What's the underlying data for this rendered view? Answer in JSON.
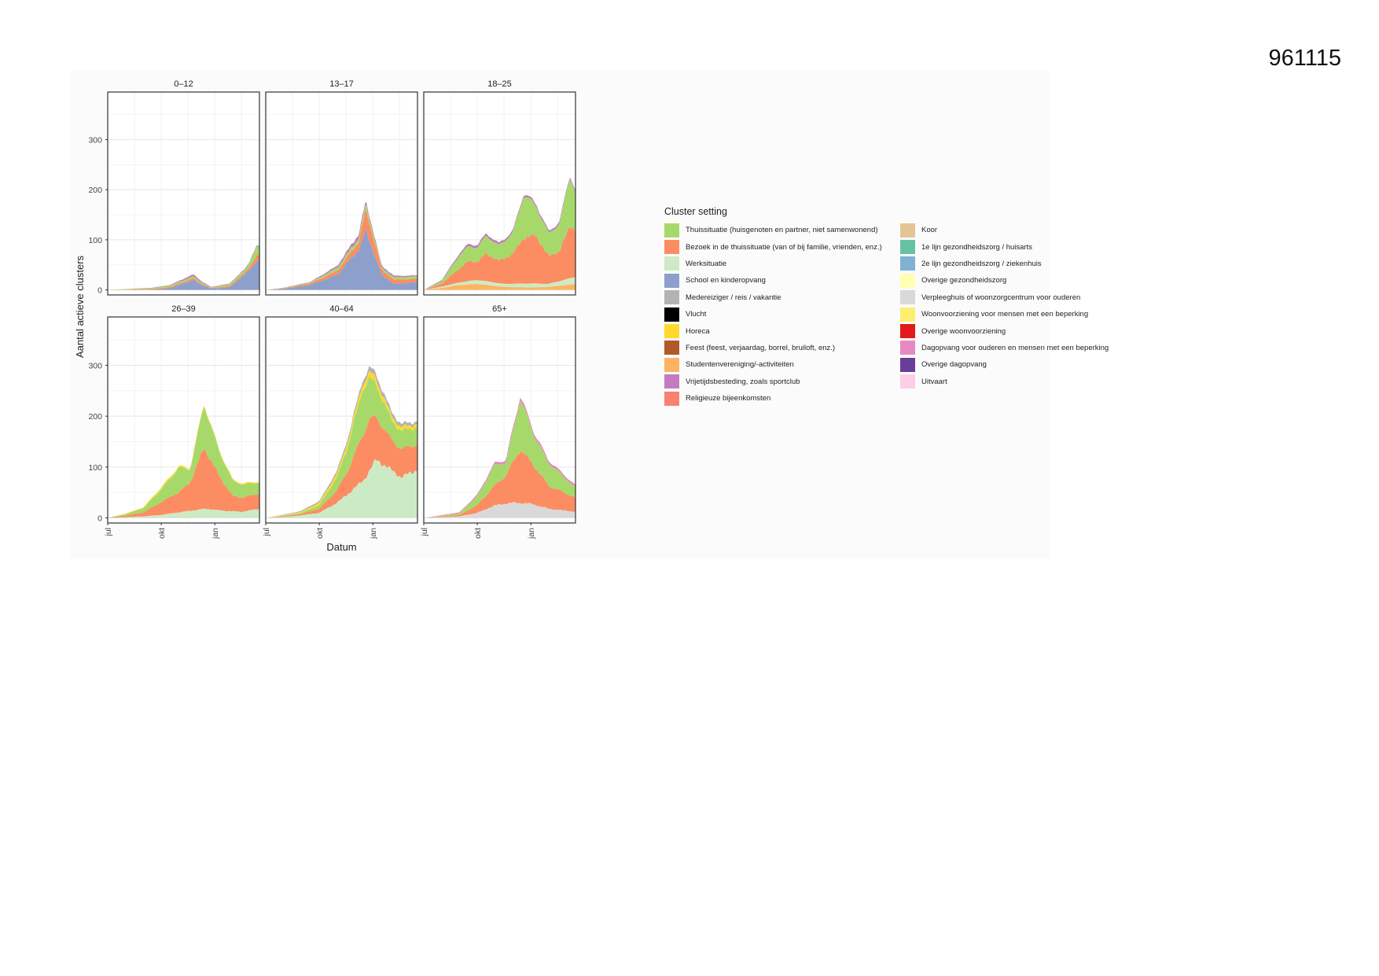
{
  "page": {
    "doc_number": "961115"
  },
  "chart_data": {
    "type": "area",
    "stacked": true,
    "ylabel": "Aantal actieve clusters",
    "xlabel": "Datum",
    "x_ticks": [
      "jul",
      "okt",
      "jan"
    ],
    "y_ticks": [
      0,
      100,
      200,
      300
    ],
    "ylim": [
      -10,
      395
    ],
    "x_months": [
      0,
      8.5
    ],
    "grid": true,
    "legend_title": "Cluster setting",
    "legend_position": "right",
    "settings": [
      {
        "name": "Thuissituatie (huisgenoten en partner, niet samenwonend)",
        "color": "#a6d96a"
      },
      {
        "name": "Bezoek in de thuissituatie (van of bij familie, vrienden, enz.)",
        "color": "#fc8d62"
      },
      {
        "name": "Werksituatie",
        "color": "#ccebc5"
      },
      {
        "name": "School en kinderopvang",
        "color": "#8da0cb"
      },
      {
        "name": "Medereiziger / reis / vakantie",
        "color": "#b3b3b3"
      },
      {
        "name": "Vlucht",
        "color": "#000000"
      },
      {
        "name": "Horeca",
        "color": "#ffd92f"
      },
      {
        "name": "Feest (feest, verjaardag, borrel, bruiloft, enz.)",
        "color": "#b15928"
      },
      {
        "name": "Studentenvereniging/-activiteiten",
        "color": "#fdb462"
      },
      {
        "name": "Vrijetijdsbesteding, zoals sportclub",
        "color": "#c27dbf"
      },
      {
        "name": "Religieuze bijeenkomsten",
        "color": "#fb8072"
      },
      {
        "name": "Koor",
        "color": "#e5c494"
      },
      {
        "name": "1e lijn gezondheidszorg / huisarts",
        "color": "#66c2a5"
      },
      {
        "name": "2e lijn gezondheidszorg / ziekenhuis",
        "color": "#80b1d3"
      },
      {
        "name": "Overige gezondheidszorg",
        "color": "#ffffb3"
      },
      {
        "name": "Verpleeghuis of woonzorgcentrum voor ouderen",
        "color": "#d9d9d9"
      },
      {
        "name": "Woonvoorziening voor mensen met een beperking",
        "color": "#ffed6f"
      },
      {
        "name": "Overige woonvoorziening",
        "color": "#e31a1c"
      },
      {
        "name": "Dagopvang voor ouderen en mensen met een beperking",
        "color": "#e78ac3"
      },
      {
        "name": "Overige dagopvang",
        "color": "#6a3d9a"
      },
      {
        "name": "Uitvaart",
        "color": "#fccde5"
      }
    ],
    "panels": [
      {
        "title": "0–12",
        "series": {
          "School en kinderopvang": [
            [
              0,
              0
            ],
            [
              2.5,
              0
            ],
            [
              3.5,
              4
            ],
            [
              4.8,
              20
            ],
            [
              5.3,
              9
            ],
            [
              5.8,
              3
            ],
            [
              6.8,
              5
            ],
            [
              7.6,
              28
            ],
            [
              8.3,
              55
            ],
            [
              8.5,
              58
            ]
          ],
          "Bezoek in de thuissituatie (van of bij familie, vrienden, enz.)": [
            [
              0,
              0
            ],
            [
              4.8,
              3
            ],
            [
              5.8,
              1
            ],
            [
              7.8,
              4
            ],
            [
              8.3,
              10
            ],
            [
              8.5,
              12
            ]
          ],
          "Thuissituatie (huisgenoten en partner, niet samenwonend)": [
            [
              0,
              0
            ],
            [
              4.8,
              4
            ],
            [
              5.8,
              1
            ],
            [
              7.8,
              6
            ],
            [
              8.3,
              18
            ],
            [
              8.5,
              16
            ]
          ],
          "Vrijetijdsbesteding, zoals sportclub": [
            [
              0,
              0
            ],
            [
              3.5,
              1
            ],
            [
              4.8,
              4
            ],
            [
              5.8,
              1
            ],
            [
              8.5,
              2
            ]
          ]
        }
      },
      {
        "title": "13–17",
        "series": {
          "School en kinderopvang": [
            [
              0,
              0
            ],
            [
              1,
              2
            ],
            [
              2.5,
              10
            ],
            [
              4,
              30
            ],
            [
              5.2,
              80
            ],
            [
              5.6,
              118
            ],
            [
              6,
              80
            ],
            [
              6.5,
              30
            ],
            [
              7.2,
              12
            ],
            [
              8.5,
              16
            ]
          ],
          "Bezoek in de thuissituatie (van of bij familie, vrienden, enz.)": [
            [
              0,
              0
            ],
            [
              2.5,
              3
            ],
            [
              4,
              8
            ],
            [
              5.2,
              15
            ],
            [
              5.6,
              40
            ],
            [
              6,
              30
            ],
            [
              6.5,
              10
            ],
            [
              8.5,
              6
            ]
          ],
          "Thuissituatie (huisgenoten en partner, niet samenwonend)": [
            [
              0,
              0
            ],
            [
              2.5,
              2
            ],
            [
              4,
              6
            ],
            [
              5.2,
              8
            ],
            [
              5.6,
              12
            ],
            [
              6,
              8
            ],
            [
              6.5,
              4
            ],
            [
              8.5,
              5
            ]
          ],
          "Vrijetijdsbesteding, zoals sportclub": [
            [
              0,
              0
            ],
            [
              2.5,
              1
            ],
            [
              4,
              4
            ],
            [
              5.2,
              8
            ],
            [
              5.6,
              6
            ],
            [
              6,
              4
            ],
            [
              8.5,
              2
            ]
          ]
        }
      },
      {
        "title": "18–25",
        "series": {
          "Studentenvereniging/-activiteiten": [
            [
              0,
              0
            ],
            [
              1,
              4
            ],
            [
              2,
              10
            ],
            [
              3,
              12
            ],
            [
              4.5,
              6
            ],
            [
              6,
              5
            ],
            [
              7,
              6
            ],
            [
              8.5,
              12
            ]
          ],
          "Werksituatie": [
            [
              0,
              0
            ],
            [
              2,
              5
            ],
            [
              3,
              8
            ],
            [
              4.5,
              6
            ],
            [
              6,
              8
            ],
            [
              7,
              6
            ],
            [
              8.5,
              14
            ]
          ],
          "Bezoek in de thuissituatie (van of bij familie, vrienden, enz.)": [
            [
              0,
              0
            ],
            [
              1,
              6
            ],
            [
              2,
              28
            ],
            [
              2.5,
              40
            ],
            [
              3,
              36
            ],
            [
              3.5,
              55
            ],
            [
              4.2,
              45
            ],
            [
              5,
              60
            ],
            [
              5.6,
              92
            ],
            [
              6.3,
              95
            ],
            [
              7,
              55
            ],
            [
              7.6,
              60
            ],
            [
              8.2,
              105
            ],
            [
              8.5,
              95
            ]
          ],
          "Thuissituatie (huisgenoten en partner, niet samenwonend)": [
            [
              0,
              0
            ],
            [
              1,
              5
            ],
            [
              2,
              26
            ],
            [
              2.5,
              30
            ],
            [
              3,
              28
            ],
            [
              3.5,
              36
            ],
            [
              4.2,
              30
            ],
            [
              5,
              42
            ],
            [
              5.6,
              85
            ],
            [
              6.3,
              60
            ],
            [
              7,
              45
            ],
            [
              7.6,
              55
            ],
            [
              8.2,
              98
            ],
            [
              8.5,
              75
            ]
          ],
          "Vrijetijdsbesteding, zoals sportclub": [
            [
              0,
              0
            ],
            [
              2,
              4
            ],
            [
              3,
              5
            ],
            [
              5,
              4
            ],
            [
              8.5,
              4
            ]
          ]
        }
      },
      {
        "title": "26–39",
        "series": {
          "Werksituatie": [
            [
              0,
              0
            ],
            [
              2,
              3
            ],
            [
              3,
              6
            ],
            [
              4.2,
              12
            ],
            [
              5.5,
              18
            ],
            [
              6.5,
              14
            ],
            [
              7.5,
              12
            ],
            [
              8.5,
              18
            ]
          ],
          "Bezoek in de thuissituatie (van of bij familie, vrienden, enz.)": [
            [
              0,
              0
            ],
            [
              1,
              3
            ],
            [
              2,
              8
            ],
            [
              3,
              25
            ],
            [
              4,
              40
            ],
            [
              4.6,
              55
            ],
            [
              5.4,
              120
            ],
            [
              6.2,
              70
            ],
            [
              7,
              30
            ],
            [
              7.6,
              28
            ],
            [
              8.5,
              30
            ]
          ],
          "Thuissituatie (huisgenoten en partner, niet samenwonend)": [
            [
              0,
              0
            ],
            [
              1,
              3
            ],
            [
              2,
              8
            ],
            [
              3,
              25
            ],
            [
              4,
              48
            ],
            [
              4.6,
              25
            ],
            [
              5.4,
              85
            ],
            [
              6.2,
              50
            ],
            [
              7,
              30
            ],
            [
              7.6,
              25
            ],
            [
              8.5,
              22
            ]
          ],
          "Horeca": [
            [
              0,
              0
            ],
            [
              2,
              2
            ],
            [
              3,
              4
            ],
            [
              4.5,
              3
            ],
            [
              8.5,
              2
            ]
          ]
        }
      },
      {
        "title": "40–64",
        "series": {
          "Werksituatie": [
            [
              0,
              0
            ],
            [
              1.5,
              3
            ],
            [
              3,
              10
            ],
            [
              4,
              30
            ],
            [
              4.7,
              50
            ],
            [
              5.5,
              75
            ],
            [
              6.2,
              115
            ],
            [
              7,
              95
            ],
            [
              7.6,
              80
            ],
            [
              8.5,
              95
            ]
          ],
          "Bezoek in de thuissituatie (van of bij familie, vrienden, enz.)": [
            [
              0,
              0
            ],
            [
              2,
              3
            ],
            [
              3,
              8
            ],
            [
              4,
              25
            ],
            [
              4.7,
              50
            ],
            [
              5.4,
              90
            ],
            [
              5.8,
              100
            ],
            [
              6.3,
              80
            ],
            [
              7,
              60
            ],
            [
              7.6,
              55
            ],
            [
              8.5,
              50
            ]
          ],
          "Thuissituatie (huisgenoten en partner, niet samenwonend)": [
            [
              0,
              0
            ],
            [
              2,
              2
            ],
            [
              3,
              7
            ],
            [
              4,
              25
            ],
            [
              4.7,
              52
            ],
            [
              5.4,
              90
            ],
            [
              5.8,
              80
            ],
            [
              6.3,
              60
            ],
            [
              7,
              40
            ],
            [
              7.6,
              35
            ],
            [
              8.5,
              35
            ]
          ],
          "Horeca": [
            [
              0,
              0
            ],
            [
              2,
              2
            ],
            [
              3,
              5
            ],
            [
              5,
              10
            ],
            [
              6,
              12
            ],
            [
              7,
              8
            ],
            [
              8.5,
              6
            ]
          ],
          "Medereiziger / reis / vakantie": [
            [
              0,
              0
            ],
            [
              3,
              3
            ],
            [
              5,
              8
            ],
            [
              6,
              10
            ],
            [
              8.5,
              5
            ]
          ]
        }
      },
      {
        "title": "65+",
        "series": {
          "Verpleeghuis of woonzorgcentrum voor ouderen": [
            [
              0,
              0
            ],
            [
              2,
              3
            ],
            [
              3,
              10
            ],
            [
              4,
              25
            ],
            [
              5,
              30
            ],
            [
              6,
              28
            ],
            [
              7,
              18
            ],
            [
              8.5,
              12
            ]
          ],
          "Bezoek in de thuissituatie (van of bij familie, vrienden, enz.)": [
            [
              0,
              0
            ],
            [
              2,
              3
            ],
            [
              3,
              15
            ],
            [
              4,
              40
            ],
            [
              4.6,
              55
            ],
            [
              5.4,
              105
            ],
            [
              6.2,
              75
            ],
            [
              7,
              45
            ],
            [
              8.5,
              28
            ]
          ],
          "Thuissituatie (huisgenoten en partner, niet samenwonend)": [
            [
              0,
              0
            ],
            [
              2,
              3
            ],
            [
              3,
              18
            ],
            [
              4,
              40
            ],
            [
              4.6,
              25
            ],
            [
              5.4,
              100
            ],
            [
              6.2,
              60
            ],
            [
              7,
              45
            ],
            [
              8.5,
              20
            ]
          ],
          "Dagopvang voor ouderen en mensen met een beperking": [
            [
              0,
              0
            ],
            [
              3,
              3
            ],
            [
              5,
              6
            ],
            [
              8.5,
              4
            ]
          ]
        }
      }
    ]
  }
}
